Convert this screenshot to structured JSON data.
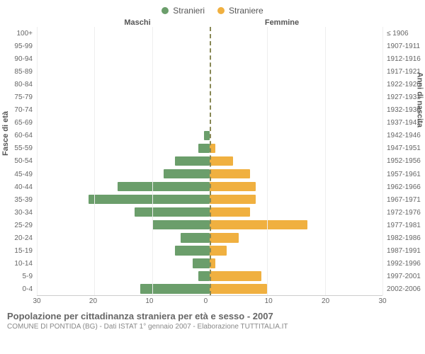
{
  "legend": {
    "male": {
      "label": "Stranieri",
      "color": "#6b9e6b"
    },
    "female": {
      "label": "Straniere",
      "color": "#f0b040"
    }
  },
  "headers": {
    "male": "Maschi",
    "female": "Femmine"
  },
  "axis_titles": {
    "left": "Fasce di età",
    "right": "Anni di nascita"
  },
  "chart": {
    "type": "population_pyramid",
    "xmax": 30,
    "xticks_left": [
      30,
      20,
      10,
      0
    ],
    "xticks_right": [
      0,
      10,
      20,
      30
    ],
    "grid_color": "#eeeeee",
    "center_line_color": "#888855",
    "male_color": "#6b9e6b",
    "female_color": "#f0b040",
    "background": "#ffffff",
    "rows": [
      {
        "age": "100+",
        "year": "≤ 1906",
        "m": 0,
        "f": 0
      },
      {
        "age": "95-99",
        "year": "1907-1911",
        "m": 0,
        "f": 0
      },
      {
        "age": "90-94",
        "year": "1912-1916",
        "m": 0,
        "f": 0
      },
      {
        "age": "85-89",
        "year": "1917-1921",
        "m": 0,
        "f": 0
      },
      {
        "age": "80-84",
        "year": "1922-1926",
        "m": 0,
        "f": 0
      },
      {
        "age": "75-79",
        "year": "1927-1931",
        "m": 0,
        "f": 0
      },
      {
        "age": "70-74",
        "year": "1932-1936",
        "m": 0,
        "f": 0
      },
      {
        "age": "65-69",
        "year": "1937-1941",
        "m": 0,
        "f": 0
      },
      {
        "age": "60-64",
        "year": "1942-1946",
        "m": 1,
        "f": 0
      },
      {
        "age": "55-59",
        "year": "1947-1951",
        "m": 2,
        "f": 1
      },
      {
        "age": "50-54",
        "year": "1952-1956",
        "m": 6,
        "f": 4
      },
      {
        "age": "45-49",
        "year": "1957-1961",
        "m": 8,
        "f": 7
      },
      {
        "age": "40-44",
        "year": "1962-1966",
        "m": 16,
        "f": 8
      },
      {
        "age": "35-39",
        "year": "1967-1971",
        "m": 21,
        "f": 8
      },
      {
        "age": "30-34",
        "year": "1972-1976",
        "m": 13,
        "f": 7
      },
      {
        "age": "25-29",
        "year": "1977-1981",
        "m": 10,
        "f": 17
      },
      {
        "age": "20-24",
        "year": "1982-1986",
        "m": 5,
        "f": 5
      },
      {
        "age": "15-19",
        "year": "1987-1991",
        "m": 6,
        "f": 3
      },
      {
        "age": "10-14",
        "year": "1992-1996",
        "m": 3,
        "f": 1
      },
      {
        "age": "5-9",
        "year": "1997-2001",
        "m": 2,
        "f": 9
      },
      {
        "age": "0-4",
        "year": "2002-2006",
        "m": 12,
        "f": 10
      }
    ]
  },
  "footer": {
    "title": "Popolazione per cittadinanza straniera per età e sesso - 2007",
    "sub": "COMUNE DI PONTIDA (BG) - Dati ISTAT 1° gennaio 2007 - Elaborazione TUTTITALIA.IT"
  }
}
